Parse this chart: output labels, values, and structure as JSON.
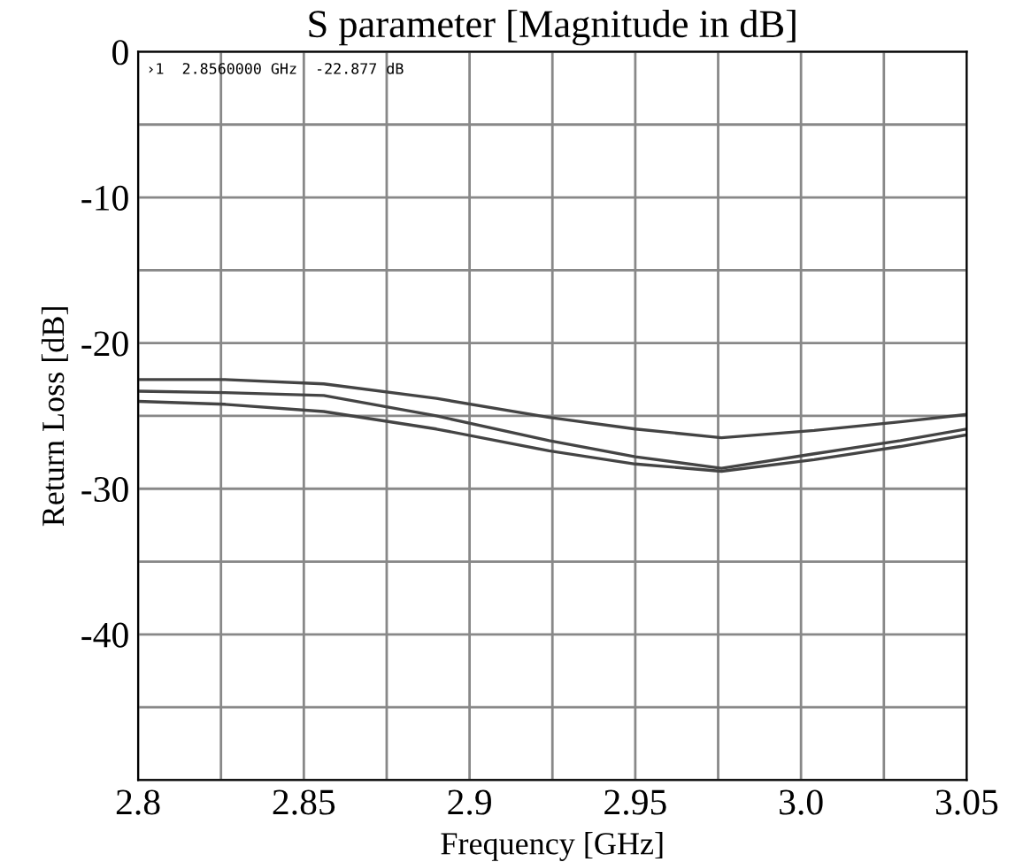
{
  "chart_data": {
    "type": "line",
    "title": "S parameter [Magnitude in dB]",
    "xlabel": "Frequency [GHz]",
    "ylabel": "Return Loss [dB]",
    "annotations": [
      "›1  2.8560000 GHz  -22.877 dB"
    ],
    "series": [
      {
        "color": "#444444",
        "x": [
          2.8,
          2.826,
          2.856,
          2.89,
          2.924,
          2.95,
          2.976,
          3.004,
          3.03,
          3.05
        ],
        "values": [
          -22.5,
          -22.5,
          -22.8,
          -23.8,
          -25.1,
          -25.9,
          -26.5,
          -26.0,
          -25.4,
          -24.9
        ]
      },
      {
        "color": "#444444",
        "x": [
          2.8,
          2.826,
          2.856,
          2.89,
          2.924,
          2.95,
          2.976,
          3.004,
          3.03,
          3.05
        ],
        "values": [
          -23.3,
          -23.4,
          -23.6,
          -25.0,
          -26.7,
          -27.8,
          -28.6,
          -27.6,
          -26.7,
          -25.9
        ]
      },
      {
        "color": "#444444",
        "x": [
          2.8,
          2.826,
          2.856,
          2.89,
          2.924,
          2.95,
          2.976,
          3.004,
          3.03,
          3.05
        ],
        "values": [
          -24.0,
          -24.2,
          -24.7,
          -25.9,
          -27.4,
          -28.3,
          -28.8,
          -28.0,
          -27.1,
          -26.3
        ]
      }
    ],
    "xlim": [
      2.8,
      3.05
    ],
    "ylim": [
      -50,
      0
    ],
    "xticks": [
      2.8,
      {
        "value": 2.825,
        "label": null
      },
      2.85,
      {
        "value": 2.875,
        "label": null
      },
      2.9,
      {
        "value": 2.925,
        "label": null
      },
      2.95,
      {
        "value": 2.975,
        "label": null
      },
      {
        "value": 3.0,
        "label": "3.0"
      },
      {
        "value": 3.025,
        "label": null
      },
      3.05
    ],
    "yticks": [
      0,
      {
        "value": -5,
        "label": null
      },
      -10,
      {
        "value": -15,
        "label": null
      },
      -20,
      {
        "value": -25,
        "label": null
      },
      -30,
      {
        "value": -35,
        "label": null
      },
      -40,
      {
        "value": -45,
        "label": null
      },
      {
        "value": -50,
        "label": null
      }
    ],
    "grid": true,
    "marker": "none",
    "line_style": "solid"
  }
}
